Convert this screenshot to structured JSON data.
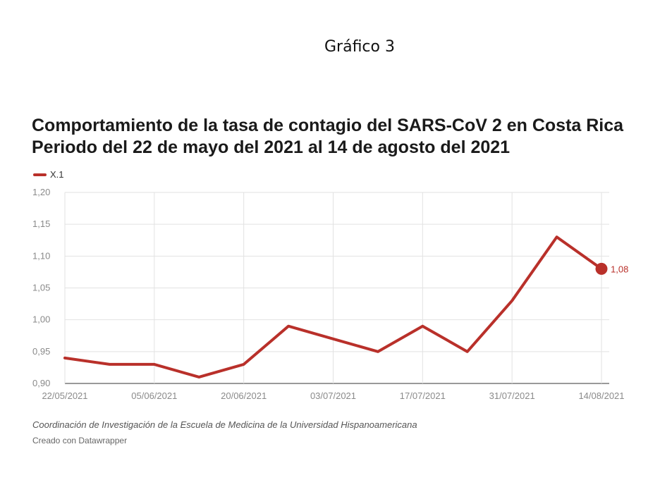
{
  "figure_label": "Gráfico 3",
  "title_lines": [
    "Comportamiento de la tasa de contagio del SARS-CoV 2 en Costa Rica",
    "Periodo del 22 de mayo del 2021 al 14 de agosto del 2021"
  ],
  "legend": {
    "label": "X.1",
    "color": "#b9302a"
  },
  "chart_data": {
    "type": "line",
    "title": "Comportamiento de la tasa de contagio del SARS-CoV 2 en Costa Rica",
    "subtitle": "Periodo del 22 de mayo del 2021 al 14 de agosto del 2021",
    "xlabel": "",
    "ylabel": "",
    "x": [
      "22/05/2021",
      "29/05/2021",
      "05/06/2021",
      "12/06/2021",
      "20/06/2021",
      "26/06/2021",
      "03/07/2021",
      "10/07/2021",
      "17/07/2021",
      "24/07/2021",
      "31/07/2021",
      "07/08/2021",
      "14/08/2021"
    ],
    "x_tick_labels": [
      "22/05/2021",
      "05/06/2021",
      "20/06/2021",
      "03/07/2021",
      "17/07/2021",
      "31/07/2021",
      "14/08/2021"
    ],
    "series": [
      {
        "name": "X.1",
        "color": "#b9302a",
        "values": [
          0.94,
          0.93,
          0.93,
          0.91,
          0.93,
          0.99,
          0.97,
          0.95,
          0.99,
          0.95,
          1.03,
          1.13,
          1.08
        ]
      }
    ],
    "ylim": [
      0.9,
      1.2
    ],
    "y_ticks": [
      "1,20",
      "1,15",
      "1,10",
      "1,05",
      "1,00",
      "0,95",
      "0,90"
    ],
    "end_label": "1,08",
    "grid": true,
    "legend_position": "top-left"
  },
  "source": "Coordinación de Investigación de la Escuela de Medicina de la Universidad Hispanoamericana",
  "credit": "Creado con Datawrapper"
}
